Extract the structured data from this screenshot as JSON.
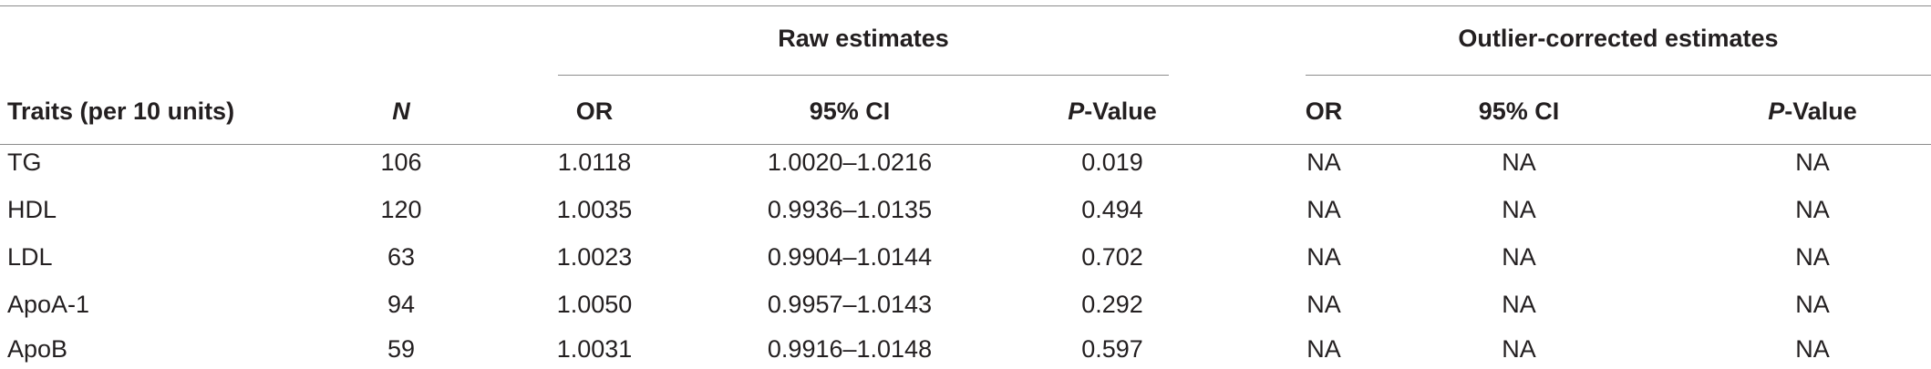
{
  "table": {
    "group_headers": {
      "raw": "Raw estimates",
      "outlier": "Outlier-corrected estimates"
    },
    "columns": {
      "traits": "Traits (per 10 units)",
      "n": "N",
      "or_raw": "OR",
      "ci_raw": "95% CI",
      "p_raw_italic": "P",
      "p_raw_rest": "-Value",
      "or_out": "OR",
      "ci_out": "95% CI",
      "p_out_italic": "P",
      "p_out_rest": "-Value"
    },
    "rows": [
      {
        "trait": "TG",
        "n": "106",
        "or": "1.0118",
        "ci": "1.0020–1.0216",
        "p": "0.019",
        "or2": "NA",
        "ci2": "NA",
        "p2": "NA"
      },
      {
        "trait": "HDL",
        "n": "120",
        "or": "1.0035",
        "ci": "0.9936–1.0135",
        "p": "0.494",
        "or2": "NA",
        "ci2": "NA",
        "p2": "NA"
      },
      {
        "trait": "LDL",
        "n": "63",
        "or": "1.0023",
        "ci": "0.9904–1.0144",
        "p": "0.702",
        "or2": "NA",
        "ci2": "NA",
        "p2": "NA"
      },
      {
        "trait": "ApoA-1",
        "n": "94",
        "or": "1.0050",
        "ci": "0.9957–1.0143",
        "p": "0.292",
        "or2": "NA",
        "ci2": "NA",
        "p2": "NA"
      },
      {
        "trait": "ApoB",
        "n": "59",
        "or": "1.0031",
        "ci": "0.9916–1.0148",
        "p": "0.597",
        "or2": "NA",
        "ci2": "NA",
        "p2": "NA"
      }
    ]
  }
}
